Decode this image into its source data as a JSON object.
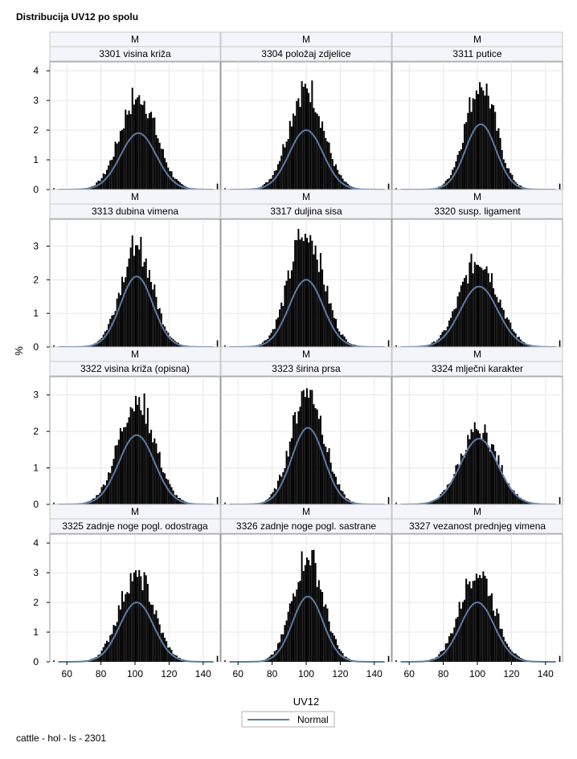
{
  "title": "Distribucija UV12 po spolu",
  "footer": "cattle - hol - ls - 2301",
  "colors": {
    "bars": "#000000",
    "normal_curve": "#5b7ca3",
    "header_bg": "#f4f5fa",
    "grid": "#e6e6e6",
    "frame": "#9a9a9a"
  },
  "chart_data": {
    "type": "histogram-panel",
    "xlabel": "UV12",
    "ylabel": "%",
    "xlim": [
      50,
      150
    ],
    "xticks": [
      "60",
      "80",
      "100",
      "120",
      "140"
    ],
    "row_yticks": [
      [
        "0",
        "1",
        "2",
        "3",
        "4"
      ],
      [
        "0",
        "1",
        "2",
        "3"
      ],
      [
        "0",
        "1",
        "2",
        "3"
      ],
      [
        "0",
        "1",
        "2",
        "3",
        "4"
      ]
    ],
    "row_ymax": [
      4.3,
      3.8,
      3.5,
      4.3
    ],
    "legend": "Normal",
    "panels": [
      {
        "group": "M",
        "label": "3301 visina križa",
        "peak": 3.3,
        "mean": 102,
        "sd": 10.5,
        "normal_peak": 1.9
      },
      {
        "group": "M",
        "label": "3304 položaj zdjelice",
        "peak": 3.6,
        "mean": 100,
        "sd": 10.0,
        "normal_peak": 2.0
      },
      {
        "group": "M",
        "label": "3311 putice",
        "peak": 3.7,
        "mean": 102,
        "sd": 9.0,
        "normal_peak": 2.2
      },
      {
        "group": "M",
        "label": "3313 dubina vimena",
        "peak": 3.1,
        "mean": 101,
        "sd": 9.5,
        "normal_peak": 2.1
      },
      {
        "group": "M",
        "label": "3317 duljina sisa",
        "peak": 3.6,
        "mean": 100,
        "sd": 10.0,
        "normal_peak": 2.0
      },
      {
        "group": "M",
        "label": "3320 susp. ligament",
        "peak": 2.7,
        "mean": 101,
        "sd": 11.0,
        "normal_peak": 1.8
      },
      {
        "group": "M",
        "label": "3322 visina križa (opisna)",
        "peak": 3.0,
        "mean": 101,
        "sd": 10.5,
        "normal_peak": 1.9
      },
      {
        "group": "M",
        "label": "3323 širina prsa",
        "peak": 3.3,
        "mean": 101,
        "sd": 9.5,
        "normal_peak": 2.1
      },
      {
        "group": "M",
        "label": "3324 mlječni karakter",
        "peak": 2.1,
        "mean": 101,
        "sd": 11.0,
        "normal_peak": 1.8
      },
      {
        "group": "M",
        "label": "3325 zadnje noge pogl. odostraga",
        "peak": 3.1,
        "mean": 101,
        "sd": 10.0,
        "normal_peak": 2.0
      },
      {
        "group": "M",
        "label": "3326 zadnje noge pogl. sastrane",
        "peak": 3.7,
        "mean": 101,
        "sd": 9.0,
        "normal_peak": 2.2
      },
      {
        "group": "M",
        "label": "3327 vezanost prednjeg vimena",
        "peak": 3.2,
        "mean": 100,
        "sd": 10.0,
        "normal_peak": 2.0
      }
    ]
  }
}
